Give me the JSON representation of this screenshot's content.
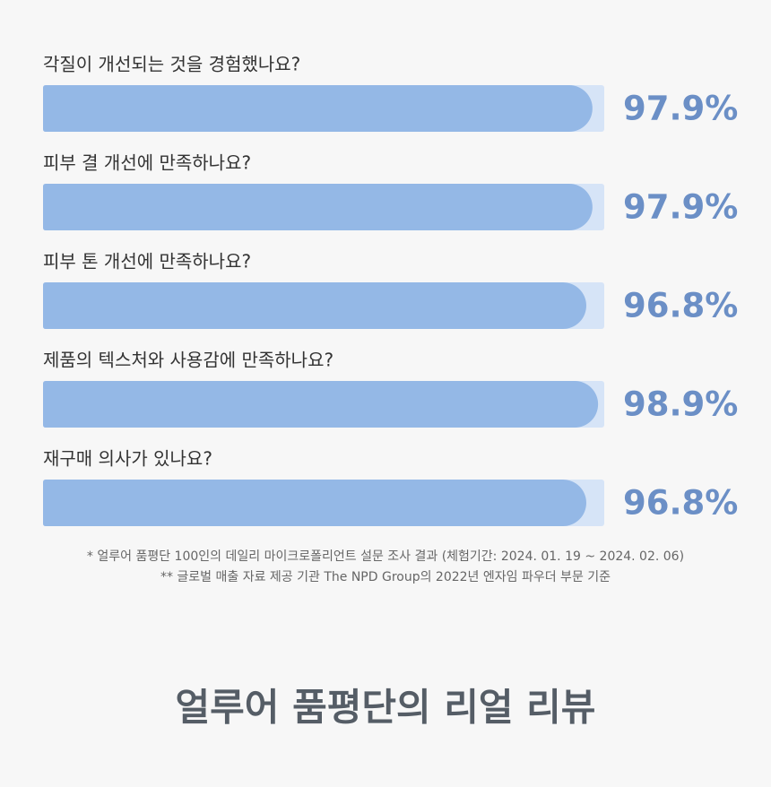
{
  "chart_data": {
    "type": "bar",
    "orientation": "horizontal",
    "categories": [
      "각질이 개선되는 것을 경험했나요?",
      "피부 결 개선에 만족하나요?",
      "피부 톤 개선에 만족하나요?",
      "제품의 텍스처와 사용감에 만족하나요?",
      "재구매 의사가 있나요?"
    ],
    "values": [
      97.9,
      97.9,
      96.8,
      98.9,
      96.8
    ],
    "value_labels": [
      "97.9%",
      "97.9%",
      "96.8%",
      "98.9%",
      "96.8%"
    ],
    "xlim": [
      0,
      100
    ],
    "color": "#94b8e6",
    "track_color": "#d6e4f7",
    "notes": [
      "* 얼루어 품평단 100인의 데일리 마이크로폴리언트 설문 조사 결과 (체험기간: 2024. 01. 19 ~ 2024. 02. 06)",
      "** 글로벌 매출 자료 제공 기관 The NPD Group의 2022년 엔자임 파우더 부문 기준"
    ],
    "title": "얼루어 품평단의 리얼 리뷰"
  }
}
